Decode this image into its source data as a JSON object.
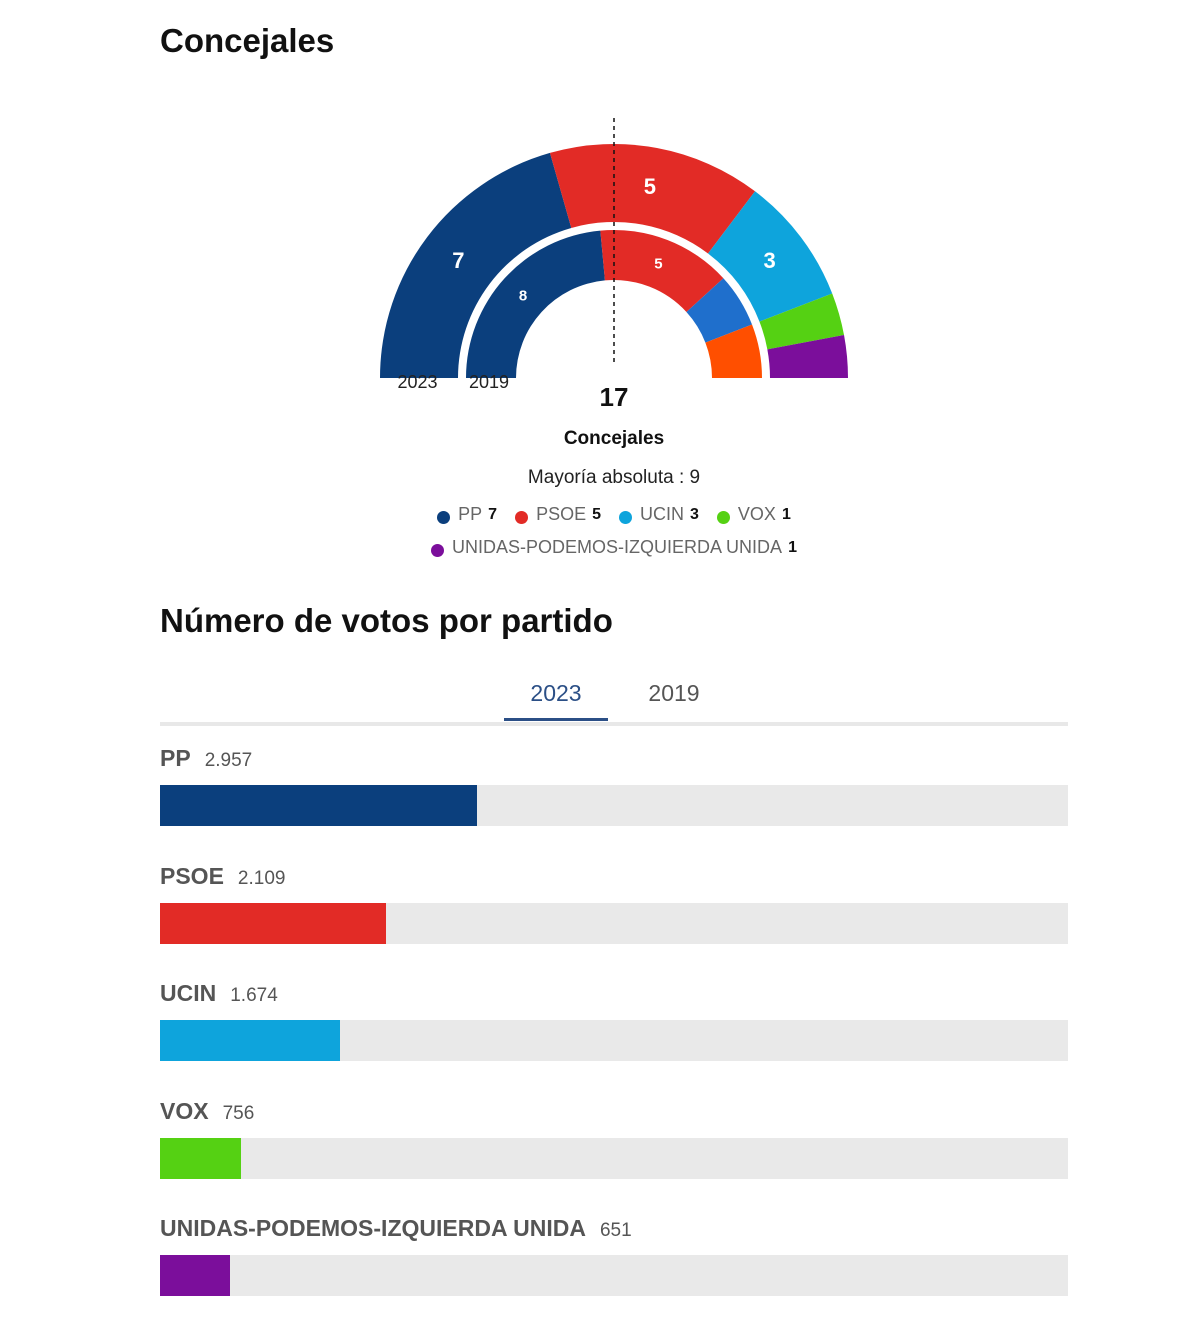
{
  "section1_title": "Concejales",
  "section2_title": "Número de votos por partido",
  "chart_data": [
    {
      "type": "pie",
      "subtype": "semicircle-parliament",
      "total": "17",
      "total_label": "Concejales",
      "majority_label": "Mayoría absoluta : 9",
      "dashed_majority_line": true,
      "rings": [
        {
          "label": "2023",
          "segments": [
            {
              "party": "PP",
              "seats": 7,
              "color": "#0b3f7d"
            },
            {
              "party": "PSOE",
              "seats": 5,
              "color": "#e22b26"
            },
            {
              "party": "UCIN",
              "seats": 3,
              "color": "#0ea4dc"
            },
            {
              "party": "VOX",
              "seats": 1,
              "color": "#55d113"
            },
            {
              "party": "UNIDAS-PODEMOS-IZQUIERDA UNIDA",
              "seats": 1,
              "color": "#7b0e9b"
            }
          ]
        },
        {
          "label": "2019",
          "segments": [
            {
              "party": "PP",
              "seats": 8,
              "color": "#0b3f7d"
            },
            {
              "party": "PSOE",
              "seats": 5,
              "color": "#e22b26"
            },
            {
              "party": "",
              "seats": 2,
              "color": "#1f6fcc"
            },
            {
              "party": "",
              "seats": 2,
              "color": "#ff4f00"
            }
          ]
        }
      ],
      "legend": [
        {
          "name": "PP",
          "value": "7",
          "color": "#0b3f7d"
        },
        {
          "name": "PSOE",
          "value": "5",
          "color": "#e22b26"
        },
        {
          "name": "UCIN",
          "value": "3",
          "color": "#0ea4dc"
        },
        {
          "name": "VOX",
          "value": "1",
          "color": "#55d113"
        },
        {
          "name": "UNIDAS-PODEMOS-IZQUIERDA UNIDA",
          "value": "1",
          "color": "#7b0e9b"
        }
      ]
    },
    {
      "type": "bar",
      "orientation": "horizontal",
      "tabs": [
        {
          "label": "2023",
          "active": true
        },
        {
          "label": "2019",
          "active": false
        }
      ],
      "bars": [
        {
          "party": "PP",
          "votes": "2.957",
          "fill_pct": 34.9,
          "color": "#0b3f7d"
        },
        {
          "party": "PSOE",
          "votes": "2.109",
          "fill_pct": 24.9,
          "color": "#e22b26"
        },
        {
          "party": "UCIN",
          "votes": "1.674",
          "fill_pct": 19.8,
          "color": "#0ea4dc"
        },
        {
          "party": "VOX",
          "votes": "756",
          "fill_pct": 8.9,
          "color": "#55d113"
        },
        {
          "party": "UNIDAS-PODEMOS-IZQUIERDA UNIDA",
          "votes": "651",
          "fill_pct": 7.7,
          "color": "#7b0e9b"
        }
      ]
    }
  ]
}
